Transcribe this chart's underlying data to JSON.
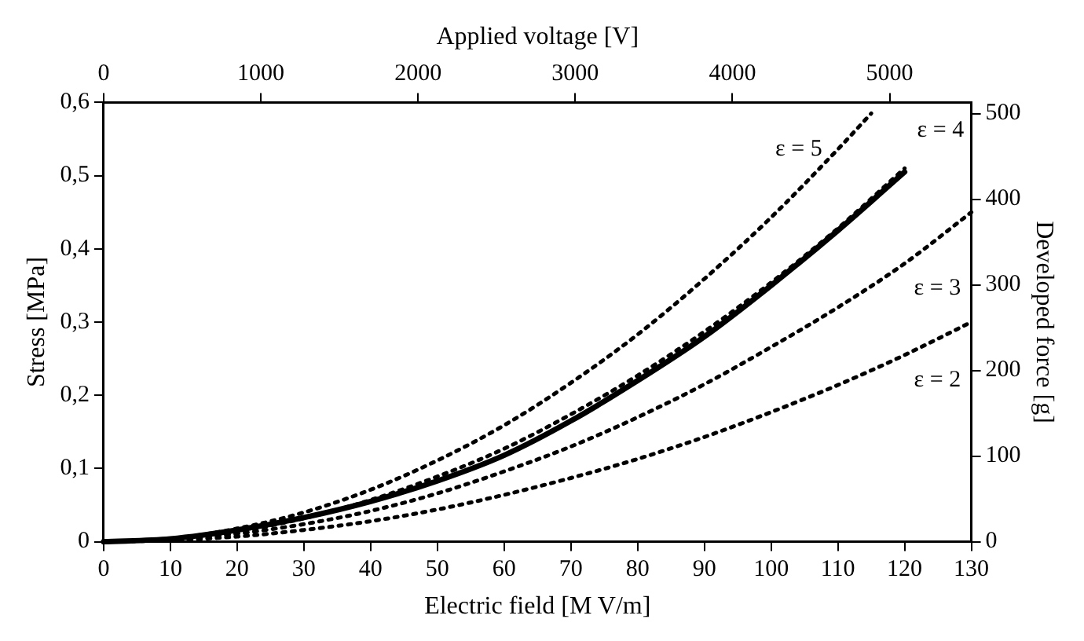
{
  "chart_data": {
    "type": "line",
    "xlabel": "Electric field [M V/m]",
    "ylabel": "Stress [MPa]",
    "x2label": "Applied voltage [V]",
    "y2label": "Developed force [g]",
    "xlim": [
      0,
      130
    ],
    "xticks": [
      0,
      10,
      20,
      30,
      40,
      50,
      60,
      70,
      80,
      90,
      100,
      110,
      120,
      130
    ],
    "x2lim": [
      0,
      5520
    ],
    "x2ticks": [
      0,
      1000,
      2000,
      3000,
      4000,
      5000
    ],
    "ylim": [
      0,
      0.6
    ],
    "yticks": [
      0,
      {
        "value": 0.1,
        "label": "0,1"
      },
      {
        "value": 0.2,
        "label": "0,2"
      },
      {
        "value": 0.3,
        "label": "0,3"
      },
      {
        "value": 0.4,
        "label": "0,4"
      },
      {
        "value": 0.5,
        "label": "0,5"
      },
      {
        "value": 0.6,
        "label": "0,6"
      }
    ],
    "y2lim": [
      0,
      513
    ],
    "y2ticks": [
      0,
      100,
      200,
      300,
      400,
      500
    ],
    "grid": false,
    "legend": false,
    "marker": "none",
    "series": [
      {
        "color": "#000000",
        "line_style": "solid",
        "x": [
          0,
          10,
          20,
          30,
          40,
          50,
          60,
          70,
          80,
          90,
          100,
          110,
          120
        ],
        "values": [
          0,
          0.004,
          0.016,
          0.033,
          0.055,
          0.083,
          0.118,
          0.165,
          0.22,
          0.28,
          0.35,
          0.425,
          0.505
        ]
      },
      {
        "name": "ε = 4",
        "color": "#000000",
        "line_style": "dotted",
        "x": [
          0,
          10,
          20,
          30,
          40,
          50,
          60,
          70,
          80,
          90,
          100,
          110,
          120
        ],
        "values": [
          0,
          0.004,
          0.014,
          0.032,
          0.057,
          0.089,
          0.127,
          0.174,
          0.227,
          0.287,
          0.354,
          0.428,
          0.51
        ]
      },
      {
        "name": "ε = 5",
        "color": "#000000",
        "line_style": "dotted",
        "x": [
          0,
          10,
          20,
          30,
          40,
          50,
          60,
          70,
          80,
          90,
          100,
          110,
          115
        ],
        "values": [
          0,
          0.004,
          0.018,
          0.04,
          0.071,
          0.111,
          0.159,
          0.217,
          0.283,
          0.359,
          0.443,
          0.536,
          0.585
        ]
      },
      {
        "name": "ε = 3",
        "color": "#000000",
        "line_style": "dotted",
        "x": [
          0,
          10,
          20,
          30,
          40,
          50,
          60,
          70,
          80,
          90,
          100,
          110,
          120,
          130
        ],
        "values": [
          0,
          0.003,
          0.011,
          0.024,
          0.042,
          0.066,
          0.096,
          0.13,
          0.17,
          0.215,
          0.266,
          0.32,
          0.38,
          0.45
        ]
      },
      {
        "name": "ε = 2",
        "color": "#000000",
        "line_style": "dotted",
        "x": [
          0,
          10,
          20,
          30,
          40,
          50,
          60,
          70,
          80,
          90,
          100,
          110,
          120,
          130
        ],
        "values": [
          0,
          0.002,
          0.007,
          0.016,
          0.028,
          0.044,
          0.064,
          0.087,
          0.113,
          0.143,
          0.177,
          0.214,
          0.255,
          0.3
        ]
      }
    ]
  }
}
